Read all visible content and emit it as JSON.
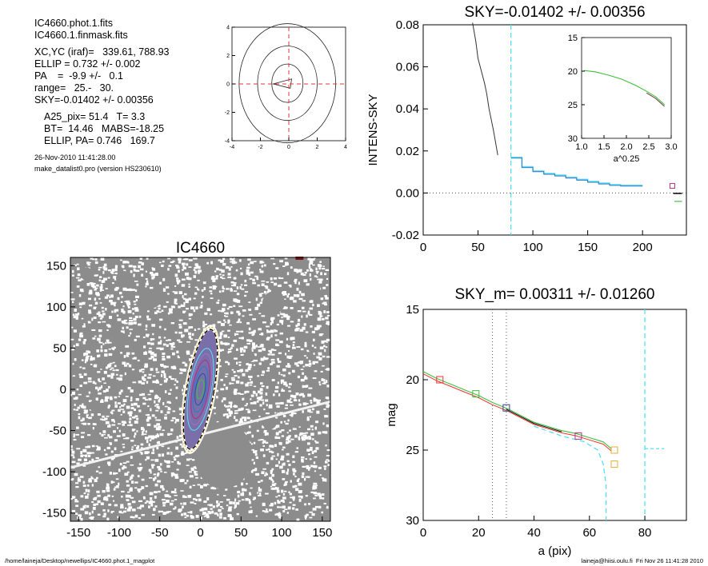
{
  "info": {
    "file1": "IC4660.phot.1.fits",
    "file2": "IC4660.1.finmask.fits",
    "xcyc": "XC,YC (iraf)=   339.61, 788.93",
    "ellip": "ELLIP = 0.732 +/- 0.002",
    "pa": "PA    =  -9.9 +/-   0.1",
    "range": "range=   25.-   30.",
    "sky": "SKY=-0.01402 +/- 0.00356",
    "a25": "A25_pix= 51.4   T= 3.3",
    "bt": "BT=  14.46   MABS=-18.25",
    "ellip_pa": "ELLIP, PA= 0.746   169.7",
    "date": "26-Nov-2010 11:41:28.00",
    "program": "make_datalist0.pro (version HS230610)"
  },
  "footer": {
    "path": "/home/laineja/Desktop/newellips/IC4660.phot.1_magplot",
    "user": "laineja@hiisi.oulu.fi  Fri Nov 26 11:41:28 2010"
  },
  "colors": {
    "cyan": "#55e0f0",
    "green": "#3fbf3f",
    "blue": "#3377cc",
    "red": "#ee3333",
    "orange": "#e0b030",
    "purple": "#aa3388",
    "gray": "#8c8c8c"
  },
  "chart_data": [
    {
      "type": "line",
      "id": "contour",
      "title": "",
      "xlim": [
        -4,
        4
      ],
      "ylim": [
        -4,
        4
      ],
      "xticks": [
        "-4",
        "-2",
        "0",
        "2",
        "4"
      ],
      "yticks": [
        "-4",
        "-2",
        "0",
        "2",
        "4"
      ],
      "crosshair": [
        0,
        0
      ]
    },
    {
      "type": "image",
      "id": "galaxy-image",
      "title": "IC4660",
      "xlim": [
        -160,
        160
      ],
      "ylim": [
        -160,
        160
      ],
      "xticks": [
        "-150",
        "-100",
        "-50",
        "0",
        "50",
        "100",
        "150"
      ],
      "yticks": [
        "150",
        "100",
        "50",
        "0",
        "-50",
        "-100",
        "-150"
      ],
      "ellipse_ellip": 0.732,
      "ellipse_pa": -9.9
    },
    {
      "type": "line",
      "id": "intensity-profile",
      "title": "SKY=-0.01402 +/- 0.00356",
      "ylabel": "INTENS-SKY",
      "xlim": [
        0,
        240
      ],
      "ylim": [
        -0.02,
        0.08
      ],
      "xticks": [
        "0",
        "50",
        "100",
        "150",
        "200"
      ],
      "yticks": [
        "0.08",
        "0.06",
        "0.04",
        "0.02",
        "0.00",
        "-0.02"
      ],
      "sky_marker_x": 80,
      "series": [
        {
          "values": [
            [
              45,
              0.081
            ],
            [
              48,
              0.072
            ],
            [
              50,
              0.064
            ],
            [
              53,
              0.058
            ],
            [
              56,
              0.052
            ],
            [
              58,
              0.047
            ],
            [
              60,
              0.04
            ],
            [
              62,
              0.035
            ],
            [
              64,
              0.03
            ],
            [
              66,
              0.024
            ],
            [
              68,
              0.018
            ]
          ]
        },
        {
          "values": [
            [
              80,
              0.017
            ],
            [
              90,
              0.0125
            ],
            [
              100,
              0.0105
            ],
            [
              110,
              0.0093
            ],
            [
              120,
              0.0085
            ],
            [
              130,
              0.0075
            ],
            [
              140,
              0.0065
            ],
            [
              150,
              0.0055
            ],
            [
              160,
              0.0047
            ],
            [
              170,
              0.004
            ],
            [
              180,
              0.0037
            ],
            [
              190,
              0.0037
            ],
            [
              200,
              0.0037
            ]
          ]
        }
      ],
      "inset": {
        "xlabel": "a^0.25",
        "xlim": [
          1.0,
          3.0
        ],
        "ylim": [
          15,
          30
        ],
        "xticks": [
          "1.0",
          "1.5",
          "2.0",
          "2.5",
          "3.0"
        ],
        "yticks": [
          "15",
          "20",
          "25",
          "30"
        ],
        "values": [
          [
            1.05,
            19.9
          ],
          [
            1.3,
            20.1
          ],
          [
            1.6,
            20.6
          ],
          [
            1.9,
            21.2
          ],
          [
            2.2,
            22.1
          ],
          [
            2.45,
            23.0
          ],
          [
            2.65,
            23.8
          ],
          [
            2.85,
            25.0
          ]
        ]
      }
    },
    {
      "type": "line",
      "id": "magnitude-profile",
      "title": "SKY_m=  0.00311 +/- 0.01260",
      "xlabel": "a (pix)",
      "ylabel": "mag",
      "xlim": [
        0,
        95
      ],
      "ylim": [
        15,
        30
      ],
      "xticks": [
        "0",
        "20",
        "40",
        "60",
        "80"
      ],
      "yticks": [
        "15",
        "20",
        "25",
        "30"
      ],
      "dotted_x": [
        25,
        30
      ],
      "dashed_x": [
        66,
        80
      ],
      "series": [
        {
          "values": [
            [
              0,
              19.5
            ],
            [
              5,
              20.0
            ],
            [
              10,
              20.4
            ],
            [
              15,
              20.8
            ],
            [
              20,
              21.2
            ],
            [
              25,
              21.7
            ],
            [
              30,
              22.1
            ],
            [
              35,
              22.6
            ],
            [
              40,
              23.1
            ],
            [
              45,
              23.4
            ],
            [
              50,
              23.7
            ],
            [
              55,
              23.9
            ],
            [
              60,
              24.2
            ],
            [
              65,
              24.5
            ],
            [
              68,
              25.0
            ]
          ]
        }
      ],
      "markers": [
        [
          6,
          20.0
        ],
        [
          19,
          21.0
        ],
        [
          30,
          22.0
        ],
        [
          56,
          24.0
        ],
        [
          69,
          25.0
        ],
        [
          69,
          26.0
        ]
      ]
    }
  ]
}
